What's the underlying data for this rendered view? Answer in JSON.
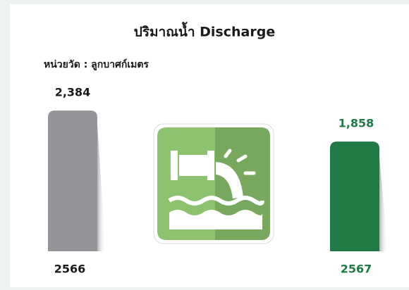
{
  "chart_data": {
    "type": "bar",
    "title": "ปริมาณน้ำ Discharge",
    "subtitle": "หน่วยวัด : ลูกบาศก์เมตร",
    "categories": [
      "2566",
      "2567"
    ],
    "values": [
      2384,
      1858
    ],
    "value_labels": [
      "2,384",
      "1,858"
    ],
    "colors": [
      "#939598",
      "#217a46"
    ],
    "label_colors": [
      "#1a1a1a",
      "#217a46"
    ]
  }
}
